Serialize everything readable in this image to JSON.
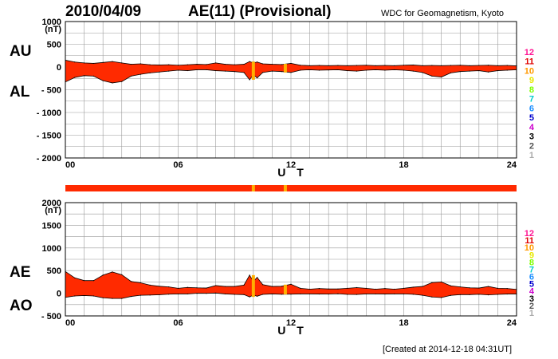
{
  "header": {
    "date": "2010/04/09",
    "title": "AE(11) (Provisional)",
    "org": "WDC for Geomagnetism, Kyoto"
  },
  "footer": {
    "created": "[Created at 2014-12-18 04:31UT]"
  },
  "colors": {
    "fill": "#ff2a00",
    "outline": "#000000",
    "grid": "#9a9a9a",
    "legend": [
      "#ff1493",
      "#e00000",
      "#ff9900",
      "#e8e800",
      "#7fff00",
      "#00cccc",
      "#1e90ff",
      "#0000cd",
      "#cc00cc",
      "#000000",
      "#555555",
      "#aaaaaa"
    ],
    "strip_warn": "#ffb000"
  },
  "legend": {
    "numbers": [
      "12",
      "11",
      "10",
      "9",
      "8",
      "7",
      "6",
      "5",
      "4",
      "3",
      "2",
      "1"
    ]
  },
  "chart_data": [
    {
      "type": "area",
      "name_labels": [
        "AU",
        "AL"
      ],
      "unit": "(nT)",
      "xlabel": "U T",
      "xlim": [
        0,
        24
      ],
      "ylim": [
        -2000,
        1000
      ],
      "x_ticks": [
        "00",
        "06",
        "12",
        "18",
        "24"
      ],
      "y_ticks": [
        "1000",
        "500",
        "0",
        "- 500",
        "- 1000",
        "- 1500",
        "- 2000"
      ],
      "y_tick_values": [
        1000,
        500,
        0,
        -500,
        -1000,
        -1500,
        -2000
      ],
      "series": [
        {
          "name": "AU",
          "x": [
            0,
            0.5,
            1,
            1.5,
            2,
            2.5,
            3,
            3.5,
            4,
            4.5,
            5,
            5.5,
            6,
            6.5,
            7,
            7.5,
            8,
            8.5,
            9,
            9.5,
            9.8,
            10,
            10.2,
            10.5,
            11,
            11.5,
            12,
            12.5,
            13,
            13.5,
            14,
            14.5,
            15,
            15.5,
            16,
            16.5,
            17,
            17.5,
            18,
            18.5,
            19,
            19.5,
            20,
            20.5,
            21,
            21.5,
            22,
            22.5,
            23,
            23.5,
            24
          ],
          "values": [
            150,
            110,
            90,
            80,
            100,
            120,
            90,
            60,
            70,
            50,
            45,
            50,
            40,
            50,
            60,
            55,
            90,
            60,
            50,
            60,
            120,
            90,
            110,
            70,
            60,
            55,
            80,
            40,
            30,
            35,
            30,
            35,
            30,
            35,
            40,
            30,
            35,
            30,
            40,
            45,
            30,
            35,
            30,
            35,
            40,
            30,
            35,
            40,
            30,
            35,
            25
          ]
        },
        {
          "name": "AL",
          "x": [
            0,
            0.5,
            1,
            1.5,
            2,
            2.5,
            3,
            3.5,
            4,
            4.5,
            5,
            5.5,
            6,
            6.5,
            7,
            7.5,
            8,
            8.5,
            9,
            9.5,
            9.8,
            10,
            10.2,
            10.5,
            11,
            11.5,
            12,
            12.5,
            13,
            13.5,
            14,
            14.5,
            15,
            15.5,
            16,
            16.5,
            17,
            17.5,
            18,
            18.5,
            19,
            19.5,
            20,
            20.5,
            21,
            21.5,
            22,
            22.5,
            23,
            23.5,
            24
          ],
          "values": [
            -330,
            -230,
            -190,
            -200,
            -300,
            -350,
            -320,
            -200,
            -160,
            -130,
            -110,
            -90,
            -70,
            -80,
            -60,
            -60,
            -80,
            -90,
            -100,
            -120,
            -280,
            -170,
            -240,
            -120,
            -90,
            -100,
            -120,
            -70,
            -60,
            -70,
            -65,
            -60,
            -80,
            -90,
            -70,
            -60,
            -70,
            -60,
            -70,
            -90,
            -120,
            -200,
            -220,
            -130,
            -100,
            -90,
            -80,
            -110,
            -80,
            -70,
            -60
          ]
        }
      ],
      "strip": {
        "labels": [
          "10",
          "10"
        ],
        "x": [
          10,
          11.7
        ]
      }
    },
    {
      "type": "area",
      "name_labels": [
        "AE",
        "AO"
      ],
      "unit": "(nT)",
      "xlabel": "U T",
      "xlim": [
        0,
        24
      ],
      "ylim": [
        -500,
        2000
      ],
      "x_ticks": [
        "00",
        "06",
        "12",
        "18",
        "24"
      ],
      "y_ticks": [
        "2000",
        "1500",
        "1000",
        "500",
        "0",
        "- 500"
      ],
      "y_tick_values": [
        2000,
        1500,
        1000,
        500,
        0,
        -500
      ],
      "series": [
        {
          "name": "AE",
          "x": [
            0,
            0.5,
            1,
            1.5,
            2,
            2.5,
            3,
            3.5,
            4,
            4.5,
            5,
            5.5,
            6,
            6.5,
            7,
            7.5,
            8,
            8.5,
            9,
            9.5,
            9.8,
            10,
            10.2,
            10.5,
            11,
            11.5,
            12,
            12.5,
            13,
            13.5,
            14,
            14.5,
            15,
            15.5,
            16,
            16.5,
            17,
            17.5,
            18,
            18.5,
            19,
            19.5,
            20,
            20.5,
            21,
            21.5,
            22,
            22.5,
            23,
            23.5,
            24
          ],
          "values": [
            480,
            340,
            280,
            280,
            400,
            470,
            410,
            260,
            230,
            180,
            155,
            140,
            110,
            130,
            120,
            115,
            170,
            150,
            150,
            180,
            400,
            260,
            350,
            190,
            150,
            155,
            200,
            110,
            90,
            105,
            95,
            95,
            110,
            125,
            110,
            90,
            105,
            90,
            110,
            135,
            150,
            235,
            250,
            165,
            140,
            120,
            115,
            150,
            110,
            105,
            85
          ]
        },
        {
          "name": "AO",
          "x": [
            0,
            0.5,
            1,
            1.5,
            2,
            2.5,
            3,
            3.5,
            4,
            4.5,
            5,
            5.5,
            6,
            6.5,
            7,
            7.5,
            8,
            8.5,
            9,
            9.5,
            9.8,
            10,
            10.2,
            10.5,
            11,
            11.5,
            12,
            12.5,
            13,
            13.5,
            14,
            14.5,
            15,
            15.5,
            16,
            16.5,
            17,
            17.5,
            18,
            18.5,
            19,
            19.5,
            20,
            20.5,
            21,
            21.5,
            22,
            22.5,
            23,
            23.5,
            24
          ],
          "values": [
            -90,
            -60,
            -50,
            -60,
            -100,
            -115,
            -115,
            -70,
            -45,
            -40,
            -32,
            -20,
            -15,
            -15,
            0,
            -2,
            5,
            -15,
            -25,
            -30,
            -80,
            -40,
            -65,
            -25,
            -15,
            -22,
            -20,
            -15,
            -15,
            -17,
            -18,
            -12,
            -25,
            -27,
            -15,
            -15,
            -17,
            -15,
            -15,
            -22,
            -45,
            -82,
            -95,
            -47,
            -30,
            -30,
            -22,
            -35,
            -25,
            -17,
            -17
          ]
        }
      ]
    }
  ]
}
